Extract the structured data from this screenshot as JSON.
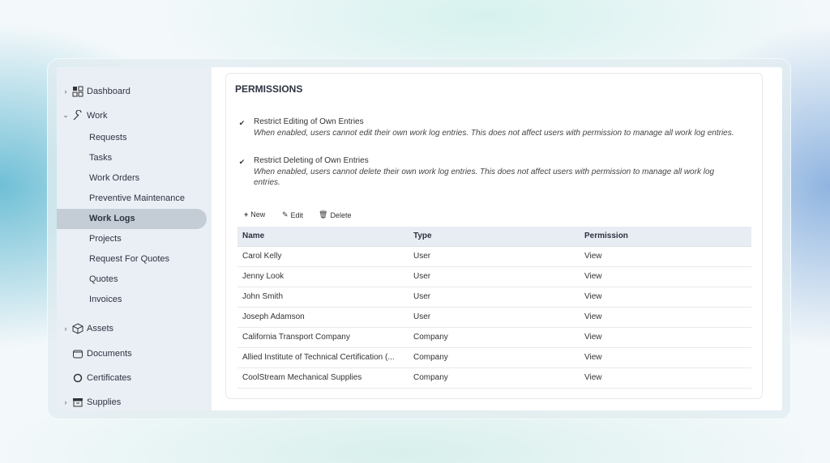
{
  "sidebar": {
    "items": [
      {
        "label": "Dashboard",
        "icon": "grid-icon",
        "expandable": true
      },
      {
        "label": "Work",
        "icon": "wrench-icon",
        "expanded": true,
        "children": [
          "Requests",
          "Tasks",
          "Work Orders",
          "Preventive Maintenance",
          "Work Logs",
          "Projects",
          "Request For Quotes",
          "Quotes",
          "Invoices"
        ]
      },
      {
        "label": "Assets",
        "icon": "box-icon",
        "expandable": true
      },
      {
        "label": "Documents",
        "icon": "folder-icon"
      },
      {
        "label": "Certificates",
        "icon": "circle-icon"
      },
      {
        "label": "Supplies",
        "icon": "archive-icon",
        "expandable": true
      }
    ],
    "active": "Work Logs"
  },
  "permissions": {
    "title": "PERMISSIONS",
    "options": [
      {
        "label": "Restrict Editing of Own Entries",
        "checked": true,
        "description": "When enabled, users cannot edit their own work log entries. This does not affect users with permission to manage all work log entries."
      },
      {
        "label": "Restrict Deleting of Own Entries",
        "checked": true,
        "description": "When enabled, users cannot delete their own work log entries. This does not affect users with permission to manage all work log entries."
      }
    ],
    "toolbar": {
      "new": "New",
      "edit": "Edit",
      "delete": "Delete"
    },
    "columns": [
      "Name",
      "Type",
      "Permission"
    ],
    "rows": [
      [
        "Carol Kelly",
        "User",
        "View"
      ],
      [
        "Jenny Look",
        "User",
        "View"
      ],
      [
        "John Smith",
        "User",
        "View"
      ],
      [
        "Joseph Adamson",
        "User",
        "View"
      ],
      [
        "California Transport Company",
        "Company",
        "View"
      ],
      [
        "Allied Institute of Technical Certification (...",
        "Company",
        "View"
      ],
      [
        "CoolStream Mechanical Supplies",
        "Company",
        "View"
      ]
    ]
  }
}
